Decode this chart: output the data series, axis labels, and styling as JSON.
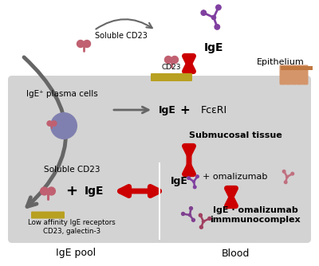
{
  "bg_color": "#ffffff",
  "gray_box_color": "#d3d3d3",
  "red_color": "#cc0000",
  "gray_arrow_color": "#666666",
  "labels": {
    "soluble_cd23_top": "Soluble CD23",
    "cd23": "CD23",
    "ige_top": "IgE",
    "epithelium": "Epithelium",
    "ige_plasma": "IgE⁺ plasma cells",
    "ige_mid": "IgE",
    "plus_sign": "+",
    "fce": "FcεRI",
    "submucosal": "Submucosal tissue",
    "soluble_cd23_bottom": "Soluble CD23",
    "low_affinity": "Low affinity IgE receptors\nCD23, galectin-3",
    "ige_blood": "IgE",
    "plus_omalizumab": "+ omalizumab",
    "ige_omalizumab": "IgE · omalizumab\nimmmunocomplex",
    "ige_pool": "IgE pool",
    "blood": "Blood"
  },
  "colors": {
    "purple_ige": "#8040a0",
    "pink_receptor": "#c06070",
    "yellow_mem": "#b8a020",
    "pink_omalizumab": "#c07080",
    "dark_pink_complex": "#a04060",
    "purple_complex": "#804090",
    "cell_body": "#8080b0",
    "cell_edge": "#6060a0"
  }
}
